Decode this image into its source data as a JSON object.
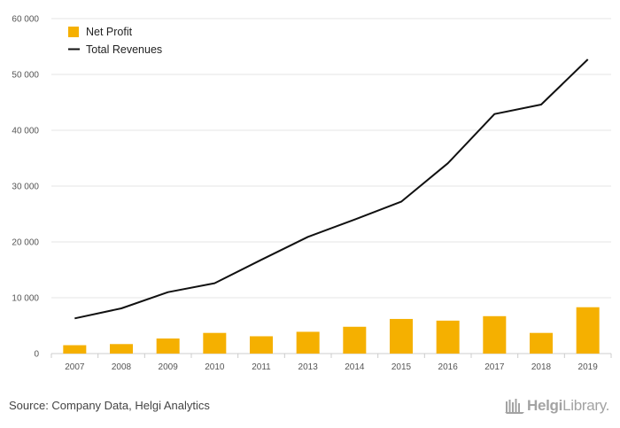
{
  "chart_data": {
    "type": "bar+line",
    "categories": [
      "2007",
      "2008",
      "2009",
      "2010",
      "2011",
      "2013",
      "2014",
      "2015",
      "2016",
      "2017",
      "2018",
      "2019"
    ],
    "series": [
      {
        "name": "Net Profit",
        "type": "bar",
        "color": "#f5b000",
        "values": [
          1500,
          1700,
          2700,
          3700,
          3100,
          3900,
          4800,
          6200,
          5900,
          6700,
          3700,
          8300
        ]
      },
      {
        "name": "Total Revenues",
        "type": "line",
        "color": "#111111",
        "values": [
          6300,
          8100,
          11000,
          12600,
          16800,
          20900,
          24000,
          27200,
          34100,
          42900,
          44600,
          52700
        ]
      }
    ],
    "ylim": [
      0,
      60000
    ],
    "yticks": [
      0,
      10000,
      20000,
      30000,
      40000,
      50000,
      60000
    ],
    "ytick_labels": [
      "0",
      "10 000",
      "20 000",
      "30 000",
      "40 000",
      "50 000",
      "60 000"
    ],
    "grid": "horizontal",
    "legend_position": "top-left"
  },
  "footer": {
    "source": "Source: Company Data, Helgi Analytics",
    "logo_part1": "Helgi",
    "logo_part2": "Library."
  }
}
